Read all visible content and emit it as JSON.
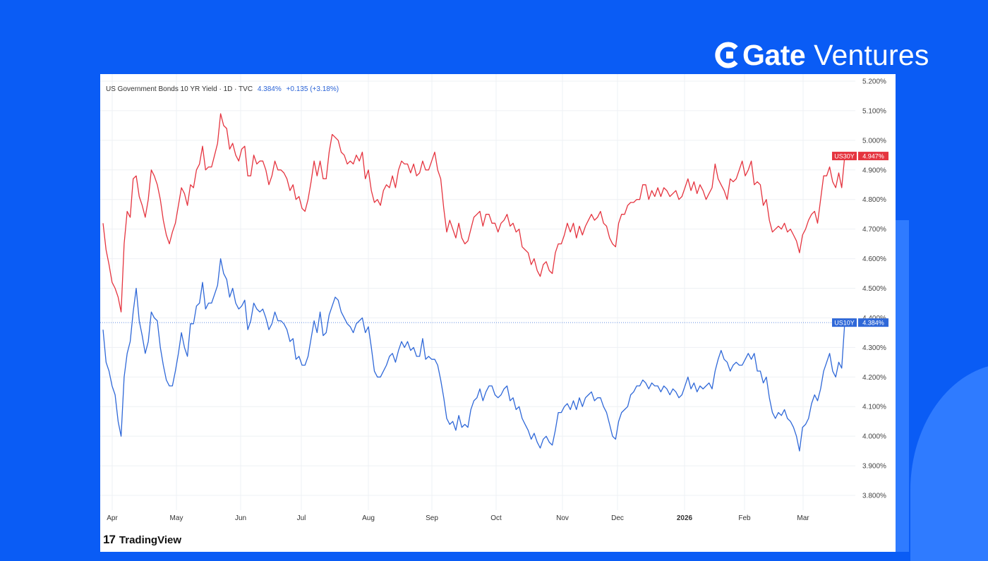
{
  "brand": {
    "name": "Gate",
    "sub": "Ventures",
    "icon": "gate-logo-icon"
  },
  "footer": {
    "logo_mark": "17",
    "logo_text": "TradingView"
  },
  "colors": {
    "background": "#0a5cf5",
    "us30y": "#e5343f",
    "us10y": "#2f68d8",
    "grid": "#eef0f4"
  },
  "chart_data": {
    "type": "line",
    "title": "US Government Bonds 10 YR Yield · 1D · TVC",
    "last_value": "4.384%",
    "change": "+0.135 (+3.18%)",
    "ylim": [
      3.75,
      5.2
    ],
    "y_ticks": [
      "5.200%",
      "5.100%",
      "5.000%",
      "4.900%",
      "4.800%",
      "4.700%",
      "4.600%",
      "4.500%",
      "4.400%",
      "4.300%",
      "4.200%",
      "4.100%",
      "4.000%",
      "3.900%",
      "3.800%"
    ],
    "x_ticks": [
      "Apr",
      "May",
      "Jun",
      "Jul",
      "Aug",
      "Sep",
      "Oct",
      "Nov",
      "Dec",
      "2026",
      "Feb",
      "Mar"
    ],
    "series": [
      {
        "name": "US30Y",
        "label": "US30Y",
        "last_label": "4.947%",
        "last": 4.947,
        "color": "#e5343f",
        "values": [
          4.72,
          4.63,
          4.58,
          4.52,
          4.5,
          4.47,
          4.42,
          4.65,
          4.76,
          4.74,
          4.87,
          4.88,
          4.81,
          4.78,
          4.74,
          4.8,
          4.9,
          4.88,
          4.85,
          4.8,
          4.73,
          4.68,
          4.65,
          4.69,
          4.72,
          4.78,
          4.84,
          4.82,
          4.78,
          4.85,
          4.84,
          4.9,
          4.92,
          4.98,
          4.9,
          4.91,
          4.91,
          4.95,
          4.99,
          5.09,
          5.05,
          5.04,
          4.97,
          4.99,
          4.95,
          4.93,
          4.97,
          4.98,
          4.88,
          4.88,
          4.95,
          4.92,
          4.93,
          4.93,
          4.9,
          4.85,
          4.88,
          4.93,
          4.9,
          4.9,
          4.89,
          4.87,
          4.83,
          4.85,
          4.8,
          4.81,
          4.77,
          4.76,
          4.8,
          4.86,
          4.93,
          4.88,
          4.93,
          4.87,
          4.87,
          4.96,
          5.02,
          5.01,
          5.0,
          4.96,
          4.95,
          4.92,
          4.93,
          4.92,
          4.95,
          4.93,
          4.96,
          4.87,
          4.9,
          4.83,
          4.79,
          4.8,
          4.78,
          4.83,
          4.85,
          4.84,
          4.88,
          4.84,
          4.9,
          4.93,
          4.92,
          4.92,
          4.89,
          4.92,
          4.88,
          4.89,
          4.93,
          4.9,
          4.9,
          4.93,
          4.96,
          4.9,
          4.87,
          4.77,
          4.69,
          4.73,
          4.7,
          4.67,
          4.72,
          4.67,
          4.65,
          4.66,
          4.7,
          4.74,
          4.75,
          4.76,
          4.71,
          4.75,
          4.75,
          4.72,
          4.72,
          4.69,
          4.72,
          4.73,
          4.75,
          4.71,
          4.72,
          4.69,
          4.7,
          4.64,
          4.63,
          4.62,
          4.58,
          4.6,
          4.56,
          4.54,
          4.58,
          4.59,
          4.56,
          4.55,
          4.62,
          4.65,
          4.65,
          4.68,
          4.72,
          4.69,
          4.72,
          4.67,
          4.71,
          4.68,
          4.71,
          4.73,
          4.75,
          4.73,
          4.74,
          4.76,
          4.72,
          4.71,
          4.67,
          4.65,
          4.64,
          4.72,
          4.75,
          4.75,
          4.78,
          4.79,
          4.79,
          4.8,
          4.8,
          4.85,
          4.85,
          4.8,
          4.83,
          4.81,
          4.84,
          4.81,
          4.84,
          4.83,
          4.81,
          4.82,
          4.83,
          4.8,
          4.81,
          4.84,
          4.87,
          4.83,
          4.86,
          4.82,
          4.85,
          4.83,
          4.8,
          4.82,
          4.84,
          4.92,
          4.87,
          4.85,
          4.83,
          4.8,
          4.87,
          4.86,
          4.87,
          4.9,
          4.93,
          4.88,
          4.9,
          4.93,
          4.85,
          4.86,
          4.85,
          4.78,
          4.8,
          4.73,
          4.69,
          4.7,
          4.71,
          4.7,
          4.72,
          4.69,
          4.7,
          4.68,
          4.66,
          4.62,
          4.68,
          4.7,
          4.73,
          4.75,
          4.76,
          4.72,
          4.8,
          4.88,
          4.88,
          4.91,
          4.86,
          4.84,
          4.89,
          4.84,
          4.947
        ]
      },
      {
        "name": "US10Y",
        "label": "US10Y",
        "last_label": "4.384%",
        "last": 4.384,
        "color": "#2f68d8",
        "values": [
          4.36,
          4.25,
          4.22,
          4.17,
          4.14,
          4.05,
          4.0,
          4.2,
          4.28,
          4.32,
          4.42,
          4.5,
          4.39,
          4.34,
          4.28,
          4.32,
          4.42,
          4.4,
          4.39,
          4.3,
          4.24,
          4.19,
          4.17,
          4.17,
          4.22,
          4.28,
          4.35,
          4.3,
          4.27,
          4.38,
          4.38,
          4.44,
          4.45,
          4.52,
          4.43,
          4.45,
          4.45,
          4.48,
          4.51,
          4.6,
          4.55,
          4.53,
          4.47,
          4.5,
          4.45,
          4.43,
          4.44,
          4.46,
          4.36,
          4.39,
          4.45,
          4.43,
          4.42,
          4.43,
          4.4,
          4.36,
          4.38,
          4.42,
          4.39,
          4.39,
          4.38,
          4.36,
          4.32,
          4.33,
          4.26,
          4.27,
          4.24,
          4.24,
          4.27,
          4.33,
          4.39,
          4.35,
          4.42,
          4.34,
          4.35,
          4.41,
          4.44,
          4.47,
          4.46,
          4.42,
          4.4,
          4.38,
          4.37,
          4.35,
          4.38,
          4.39,
          4.4,
          4.35,
          4.37,
          4.3,
          4.22,
          4.2,
          4.2,
          4.22,
          4.24,
          4.27,
          4.28,
          4.25,
          4.29,
          4.32,
          4.3,
          4.32,
          4.29,
          4.3,
          4.27,
          4.27,
          4.33,
          4.26,
          4.27,
          4.26,
          4.26,
          4.24,
          4.19,
          4.13,
          4.06,
          4.04,
          4.05,
          4.02,
          4.07,
          4.03,
          4.04,
          4.03,
          4.09,
          4.12,
          4.13,
          4.16,
          4.12,
          4.15,
          4.17,
          4.17,
          4.14,
          4.13,
          4.14,
          4.16,
          4.17,
          4.12,
          4.13,
          4.09,
          4.1,
          4.06,
          4.04,
          4.02,
          3.99,
          4.01,
          3.98,
          3.96,
          3.99,
          4.0,
          3.98,
          3.97,
          4.02,
          4.08,
          4.08,
          4.1,
          4.11,
          4.09,
          4.12,
          4.09,
          4.13,
          4.1,
          4.13,
          4.14,
          4.15,
          4.12,
          4.13,
          4.13,
          4.1,
          4.08,
          4.04,
          4.0,
          3.99,
          4.05,
          4.08,
          4.09,
          4.1,
          4.14,
          4.15,
          4.17,
          4.17,
          4.19,
          4.18,
          4.16,
          4.18,
          4.17,
          4.17,
          4.15,
          4.17,
          4.16,
          4.14,
          4.16,
          4.15,
          4.13,
          4.14,
          4.17,
          4.2,
          4.16,
          4.18,
          4.15,
          4.17,
          4.16,
          4.17,
          4.18,
          4.16,
          4.22,
          4.26,
          4.29,
          4.26,
          4.25,
          4.22,
          4.24,
          4.25,
          4.24,
          4.24,
          4.26,
          4.28,
          4.26,
          4.28,
          4.22,
          4.22,
          4.18,
          4.2,
          4.13,
          4.08,
          4.06,
          4.08,
          4.07,
          4.09,
          4.06,
          4.05,
          4.03,
          4.0,
          3.95,
          4.03,
          4.04,
          4.06,
          4.11,
          4.14,
          4.12,
          4.16,
          4.22,
          4.25,
          4.28,
          4.22,
          4.2,
          4.25,
          4.23,
          4.384
        ]
      }
    ]
  }
}
